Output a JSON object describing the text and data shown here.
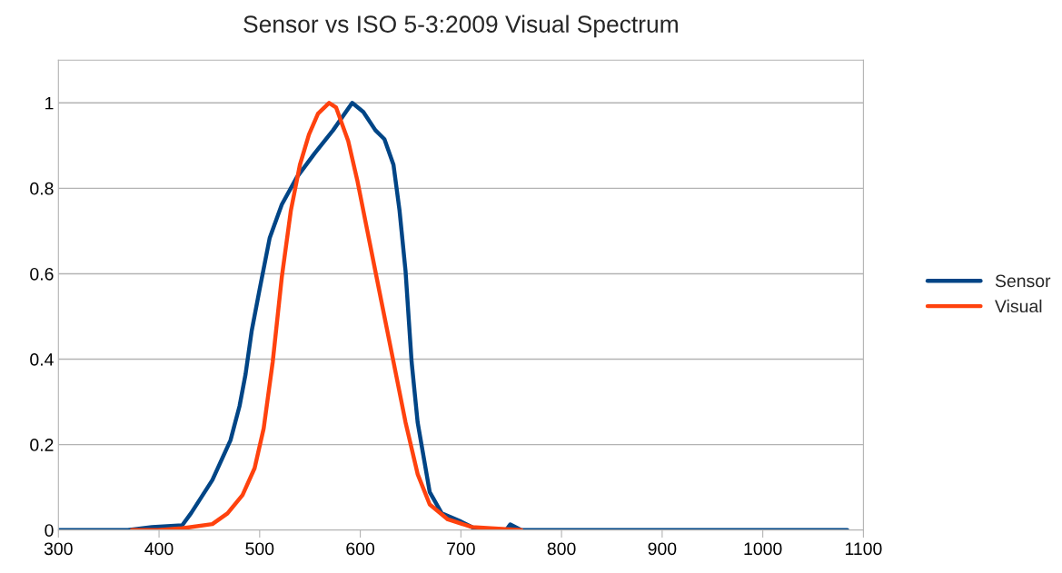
{
  "chart_data": {
    "type": "line",
    "title": "Sensor vs ISO 5-3:2009 Visual Spectrum",
    "xlim": [
      300,
      1100
    ],
    "xticks": [
      300,
      400,
      500,
      600,
      700,
      800,
      900,
      1000,
      1100
    ],
    "ylim": [
      0,
      1.1
    ],
    "yticks": [
      0,
      0.2,
      0.4,
      0.6,
      0.8,
      1
    ],
    "grid": "y",
    "legend": "right",
    "marker": "none",
    "line_style": "solid",
    "series": [
      {
        "name": "Sensor",
        "color": "#004586",
        "x": [
          300,
          333,
          369,
          393,
          423,
          432,
          453,
          471,
          480,
          486,
          492,
          500,
          510,
          522,
          537,
          555,
          573,
          592,
          603,
          615,
          624,
          633,
          639,
          645,
          651,
          657,
          669,
          681,
          699,
          717,
          745,
          749,
          760,
          1084
        ],
        "values": [
          0,
          0,
          0,
          0.007,
          0.011,
          0.04,
          0.117,
          0.21,
          0.29,
          0.365,
          0.465,
          0.564,
          0.684,
          0.762,
          0.826,
          0.883,
          0.936,
          1.0,
          0.979,
          0.936,
          0.915,
          0.855,
          0.748,
          0.606,
          0.394,
          0.252,
          0.089,
          0.039,
          0.021,
          0,
          0,
          0.013,
          0,
          0
        ]
      },
      {
        "name": "Visual",
        "color": "#ff420e",
        "x": [
          373,
          399,
          423,
          453,
          468,
          483,
          495,
          504,
          513,
          522,
          531,
          540,
          549,
          558,
          569,
          576,
          588,
          597,
          609,
          621,
          633,
          645,
          657,
          669,
          687,
          711,
          760
        ],
        "values": [
          0,
          0,
          0.004,
          0.014,
          0.039,
          0.082,
          0.145,
          0.238,
          0.394,
          0.592,
          0.748,
          0.855,
          0.926,
          0.975,
          1.0,
          0.989,
          0.911,
          0.819,
          0.677,
          0.535,
          0.394,
          0.252,
          0.131,
          0.06,
          0.025,
          0.007,
          0
        ]
      }
    ]
  }
}
